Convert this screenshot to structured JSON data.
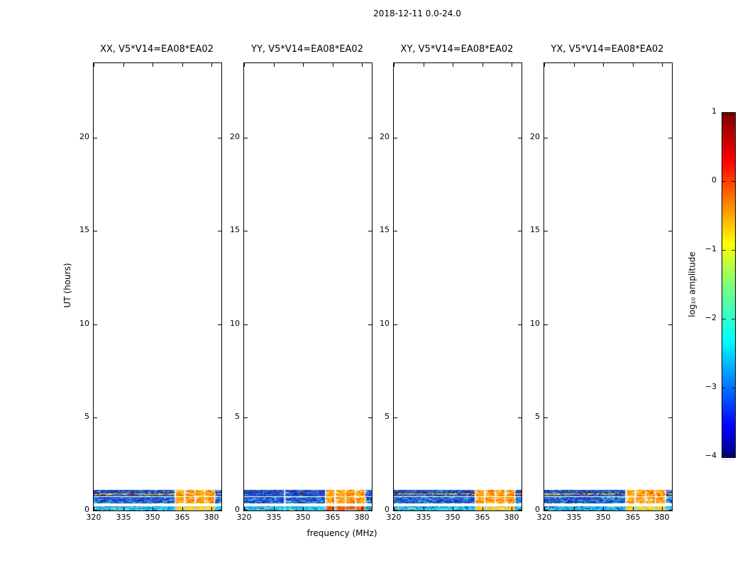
{
  "chart_data": {
    "type": "heatmap",
    "title": "2018-12-11 0.0-24.0",
    "xlabel": "frequency (MHz)",
    "ylabel": "UT (hours)",
    "x_range": [
      320,
      385
    ],
    "y_range": [
      0,
      24
    ],
    "x_tick_values": [
      320,
      335,
      350,
      365,
      380
    ],
    "x_tick_labels": [
      "320",
      "335",
      "350",
      "365",
      "380"
    ],
    "y_tick_values": [
      0,
      5,
      10,
      15,
      20
    ],
    "y_tick_labels": [
      "0",
      "5",
      "10",
      "15",
      "20"
    ],
    "grid": false,
    "panels": [
      {
        "id": "XX",
        "label": "XX, V5*V14=EA08*EA02",
        "baseline_line": true,
        "rfi_band3_style": "yellow"
      },
      {
        "id": "YY",
        "label": "YY, V5*V14=EA08*EA02",
        "baseline_line": false,
        "rfi_band3_style": "orange_red",
        "red_speck_mhz": 349,
        "pale_column_mhz": 340.5
      },
      {
        "id": "XY",
        "label": "XY, V5*V14=EA08*EA02",
        "baseline_line": true,
        "rfi_band3_style": "yellow"
      },
      {
        "id": "YX",
        "label": "YX, V5*V14=EA08*EA02",
        "baseline_line": true,
        "rfi_band3_style": "yellow"
      }
    ],
    "data_bands": [
      {
        "name": "upper-band",
        "t_start": 0.76,
        "t_end": 1.1,
        "base_level_log10": -2.8,
        "palette": "blue"
      },
      {
        "name": "middle-band",
        "t_start": 0.38,
        "t_end": 0.72,
        "base_level_log10": -2.7,
        "palette": "blue2"
      },
      {
        "name": "bottom-band",
        "t_start": 0.0,
        "t_end": 0.23,
        "base_level_log10": -2.0,
        "palette": "cyan"
      }
    ],
    "upper_band_line": {
      "t_center": 0.93,
      "f_start": 320,
      "f_end": 361,
      "level_log10": -1.0
    },
    "rfi_region": {
      "f_start": 361,
      "f_end": 381.5,
      "separators_mhz": [
        366.1,
        371.2,
        376.3
      ],
      "level_log10": -0.8
    },
    "colorbar": {
      "label": "log₁₀ amplitude",
      "tick_values": [
        1,
        0,
        -1,
        -2,
        -3,
        -4
      ],
      "tick_labels": [
        "1",
        "0",
        "−1",
        "−2",
        "−3",
        "−4"
      ],
      "range": [
        -4,
        1
      ],
      "colormap": "jet",
      "colormap_stops": [
        [
          0.0,
          "#000083"
        ],
        [
          0.09,
          "#0000ff"
        ],
        [
          0.34,
          "#00ffff"
        ],
        [
          0.5,
          "#7dff7a"
        ],
        [
          0.62,
          "#ffff00"
        ],
        [
          0.86,
          "#ff0000"
        ],
        [
          1.0,
          "#800000"
        ]
      ]
    },
    "palettes": {
      "blue": {
        "colors": [
          "#2244cc",
          "#1b3bb0",
          "#2f5fd0",
          "#1630a0",
          "#3a77d9",
          "#28b4e0",
          "#102080"
        ],
        "weights": [
          0.24,
          0.2,
          0.18,
          0.14,
          0.12,
          0.08,
          0.04
        ]
      },
      "blue2": {
        "colors": [
          "#1d44c8",
          "#2a5bd8",
          "#1733aa",
          "#35c0e8",
          "#2d6fd6",
          "#123090",
          "#49d0e8"
        ],
        "weights": [
          0.22,
          0.2,
          0.16,
          0.14,
          0.14,
          0.07,
          0.07
        ]
      },
      "cyan": {
        "colors": [
          "#25c8f0",
          "#3adcf2",
          "#18a8e8",
          "#52e8d8",
          "#2090dd",
          "#1a66cc",
          "#ffee66",
          "#0b2a9e"
        ],
        "weights": [
          0.24,
          0.2,
          0.17,
          0.12,
          0.12,
          0.08,
          0.03,
          0.04
        ]
      },
      "line": {
        "colors": [
          "#ffe800",
          "#ffd000",
          "#ff9900",
          "#d93300",
          "#8b0000"
        ],
        "weights": [
          0.4,
          0.25,
          0.15,
          0.12,
          0.08
        ]
      },
      "rfi_orange": {
        "colors": [
          "#ffaa00",
          "#ff9100",
          "#ff7b00",
          "#ffc83c",
          "#ffe34d",
          "#e83000"
        ],
        "weights": [
          0.26,
          0.22,
          0.18,
          0.16,
          0.12,
          0.06
        ]
      },
      "rfi_yellow": {
        "colors": [
          "#ffd92e",
          "#f2c51f",
          "#ffe95a",
          "#e8b815",
          "#ffaa22"
        ],
        "weights": [
          0.3,
          0.24,
          0.2,
          0.14,
          0.12
        ]
      },
      "rfi_red": {
        "colors": [
          "#ff7700",
          "#ff5500",
          "#f2420a",
          "#ff8811",
          "#e83300"
        ],
        "weights": [
          0.24,
          0.24,
          0.2,
          0.16,
          0.16
        ]
      }
    }
  }
}
